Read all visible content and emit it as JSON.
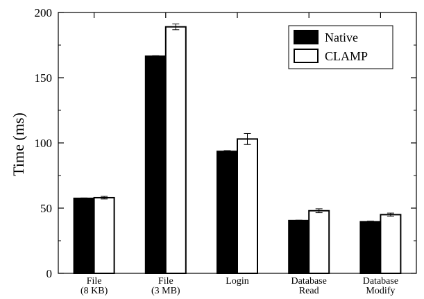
{
  "chart_data": {
    "type": "bar",
    "title": "",
    "xlabel": "",
    "ylabel": "Time (ms)",
    "ylim": [
      0,
      200
    ],
    "yticks": [
      0,
      50,
      100,
      150,
      200
    ],
    "grid": false,
    "legend_position": "top-right",
    "categories": [
      [
        "File",
        "(8 KB)"
      ],
      [
        "File",
        "(3 MB)"
      ],
      [
        "Login"
      ],
      [
        "Database",
        "Read"
      ],
      [
        "Database",
        "Modify"
      ]
    ],
    "series": [
      {
        "name": "Native",
        "color": "#000000",
        "values": [
          57.5,
          166.5,
          93.5,
          40.5,
          39.5
        ],
        "errors": [
          0.3,
          0.4,
          0.6,
          0.3,
          0.5
        ]
      },
      {
        "name": "CLAMP",
        "color": "#ffffff",
        "values": [
          58,
          189,
          103,
          48,
          45
        ],
        "errors": [
          1,
          2.2,
          4.2,
          1.5,
          1.2
        ]
      }
    ]
  }
}
